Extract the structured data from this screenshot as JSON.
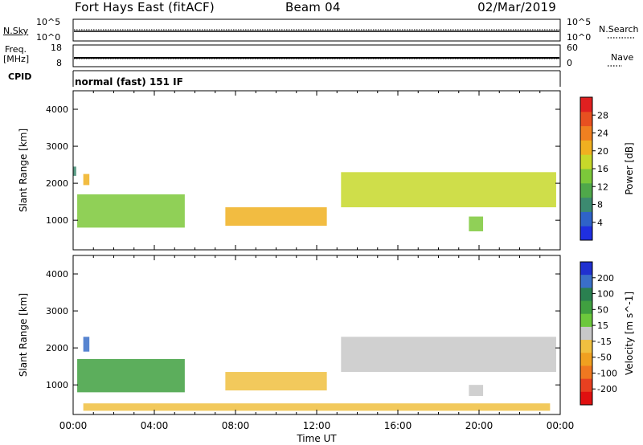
{
  "header": {
    "station": "Fort Hays East (fitACF)",
    "beam": "Beam 04",
    "date": "02/Mar/2019"
  },
  "panels": {
    "noise": {
      "left_label": "N.Sky",
      "right_label": "N.Search",
      "left_ticks": [
        "10^5",
        "10^0"
      ],
      "right_ticks": [
        "10^5",
        "10^0"
      ]
    },
    "freq": {
      "left_label_line1": "Freq.",
      "left_label_line2": "[MHz]",
      "right_label": "Nave",
      "left_ticks": [
        "18",
        "8"
      ],
      "right_ticks": [
        "60",
        "0"
      ]
    },
    "cpid": {
      "label": "CPID",
      "value": "normal (fast) 151 IF"
    }
  },
  "chart_data": [
    {
      "type": "heatmap",
      "quantity": "Power",
      "ylabel": "Slant Range [km]",
      "yticks": [
        1000,
        2000,
        3000,
        4000
      ],
      "ylim": [
        200,
        4500
      ],
      "xlim_hours": [
        0,
        24
      ],
      "colorbar": {
        "label": "Power [dB]",
        "ticks": [
          "4",
          "8",
          "12",
          "16",
          "20",
          "24",
          "28"
        ],
        "colors": [
          "#1f2fe0",
          "#2f63c8",
          "#3c8a70",
          "#4fa84a",
          "#7cc83a",
          "#c7d82a",
          "#f0b020",
          "#f08020",
          "#e85020",
          "#e02020"
        ]
      },
      "echo_regions": [
        {
          "t_start": 0.0,
          "t_end": 0.15,
          "r_start": 2200,
          "r_end": 2450,
          "value": 8
        },
        {
          "t_start": 0.5,
          "t_end": 0.8,
          "r_start": 1950,
          "r_end": 2250,
          "value": 20
        },
        {
          "t_start": 0.2,
          "t_end": 5.5,
          "r_start": 800,
          "r_end": 1700,
          "value": 12
        },
        {
          "t_start": 7.5,
          "t_end": 12.5,
          "r_start": 850,
          "r_end": 1350,
          "value": 20
        },
        {
          "t_start": 13.2,
          "t_end": 23.8,
          "r_start": 1350,
          "r_end": 2300,
          "value": 16
        },
        {
          "t_start": 19.5,
          "t_end": 20.2,
          "r_start": 700,
          "r_end": 1100,
          "value": 12
        }
      ]
    },
    {
      "type": "heatmap",
      "quantity": "Velocity",
      "ylabel": "Slant Range [km]",
      "yticks": [
        1000,
        2000,
        3000,
        4000
      ],
      "ylim": [
        200,
        4500
      ],
      "xlim_hours": [
        0,
        24
      ],
      "xticks": [
        "00:00",
        "04:00",
        "08:00",
        "12:00",
        "16:00",
        "20:00",
        "00:00"
      ],
      "xlabel": "Time UT",
      "colorbar": {
        "label": "Velocity [m s^-1]",
        "ticks": [
          "200",
          "100",
          "50",
          "15",
          "-15",
          "-50",
          "-100",
          "-200"
        ],
        "colors": [
          "#2030d0",
          "#3a6fc8",
          "#2a8050",
          "#40a040",
          "#6cc83c",
          "#c8c8c8",
          "#f0c040",
          "#f0a020",
          "#f07820",
          "#e84020",
          "#e01010"
        ]
      },
      "echo_regions": [
        {
          "t_start": 0.5,
          "t_end": 0.8,
          "r_start": 1900,
          "r_end": 2300,
          "value": 200
        },
        {
          "t_start": 0.2,
          "t_end": 5.5,
          "r_start": 800,
          "r_end": 1700,
          "value": 50
        },
        {
          "t_start": 7.5,
          "t_end": 12.5,
          "r_start": 850,
          "r_end": 1350,
          "value": -30
        },
        {
          "t_start": 13.2,
          "t_end": 23.8,
          "r_start": 1350,
          "r_end": 2300,
          "value": 0
        },
        {
          "t_start": 19.5,
          "t_end": 20.2,
          "r_start": 700,
          "r_end": 1000,
          "value": 0
        },
        {
          "t_start": 0.5,
          "t_end": 23.5,
          "r_start": 300,
          "r_end": 500,
          "value": -40
        }
      ]
    }
  ]
}
